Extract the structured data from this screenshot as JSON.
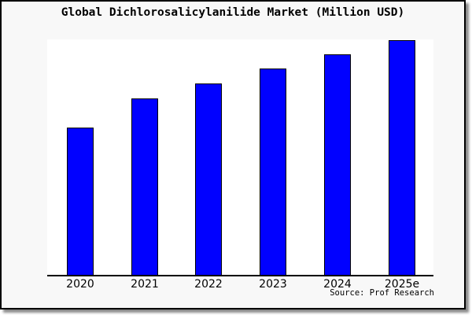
{
  "title": "Global Dichlorosalicylanilide Market (Million USD)",
  "source_credit": "Source: Prof Research",
  "card": {
    "background": "#f8f8f8",
    "border_color": "#000000",
    "shadow_color": "#8a8a8a"
  },
  "chart_data": {
    "type": "bar",
    "title": "Global Dichlorosalicylanilide Market (Million USD)",
    "categories": [
      "2020",
      "2021",
      "2022",
      "2023",
      "2024",
      "2025e"
    ],
    "values_pct_of_max": [
      62.8,
      75.2,
      81.5,
      87.9,
      94.0,
      100.0
    ],
    "unit_note": "no y-axis or value labels shown; values estimated as bar height percentage of tallest bar (2025e)",
    "xlabel": "",
    "ylabel": "",
    "ylim_pct": [
      0,
      100.3
    ],
    "grid": false,
    "legend": false,
    "bar_fill": "#0101ff",
    "bar_edge": "#000000",
    "plot_background": "#ffffff",
    "source": "Source: Prof Research"
  }
}
